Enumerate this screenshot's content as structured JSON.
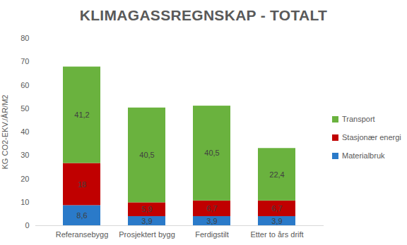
{
  "chart_data": {
    "type": "bar",
    "title": "KLIMAGASSREGNSKAP - TOTALT",
    "y_label": "KG CO2-EKV./ÅR/M2",
    "categories": [
      "Referansebygg",
      "Prosjektert bygg",
      "Ferdigstilt",
      "Etter to års drift"
    ],
    "series": [
      {
        "name": "Materialbruk",
        "color": "#2a7ac9",
        "values": [
          8.6,
          3.9,
          3.9,
          3.9
        ],
        "value_labels": [
          "8,6",
          "3,9",
          "3,9",
          "3,9"
        ]
      },
      {
        "name": "Stasjonær energi",
        "color": "#c00000",
        "values": [
          18,
          5.9,
          6.7,
          6.7
        ],
        "value_labels": [
          "18",
          "5,9",
          "6,7",
          "6,7"
        ]
      },
      {
        "name": "Transport",
        "color": "#6ab23e",
        "values": [
          41.2,
          40.5,
          40.5,
          22.4
        ],
        "value_labels": [
          "41,2",
          "40,5",
          "40,5",
          "22,4"
        ]
      }
    ],
    "ylim": [
      0,
      80
    ],
    "yticks": [
      0,
      10,
      20,
      30,
      40,
      50,
      60,
      70,
      80
    ],
    "stacked": true,
    "data_labels": true,
    "legend": "right",
    "grid": false
  }
}
